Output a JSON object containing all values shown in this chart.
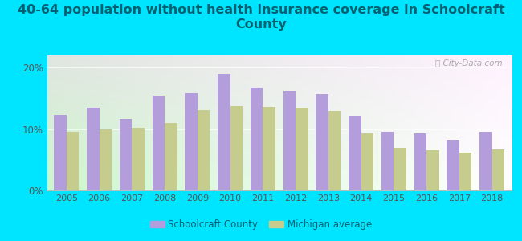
{
  "title_line1": "40-64 population without health insurance coverage in Schoolcraft",
  "title_line2": "County",
  "years": [
    2005,
    2006,
    2007,
    2008,
    2009,
    2010,
    2011,
    2012,
    2013,
    2014,
    2015,
    2016,
    2017,
    2018
  ],
  "schoolcraft": [
    12.3,
    13.5,
    11.7,
    15.5,
    15.8,
    19.0,
    16.8,
    16.3,
    15.7,
    12.2,
    9.6,
    9.3,
    8.2,
    9.6
  ],
  "michigan": [
    9.5,
    9.9,
    10.2,
    11.0,
    13.1,
    13.7,
    13.6,
    13.5,
    12.9,
    9.3,
    7.0,
    6.5,
    6.1,
    6.7
  ],
  "bar_color_schoolcraft": "#b39ddb",
  "bar_color_michigan": "#c5cc8e",
  "background_outer": "#00e5ff",
  "title_color": "#006070",
  "title_fontsize": 11.5,
  "legend_label_schoolcraft": "Schoolcraft County",
  "legend_label_michigan": "Michigan average",
  "yticks": [
    0,
    10,
    20
  ],
  "ytick_labels": [
    "0%",
    "10%",
    "20%"
  ],
  "ylim": [
    0,
    22
  ],
  "bar_width": 0.38,
  "tick_color": "#555555"
}
